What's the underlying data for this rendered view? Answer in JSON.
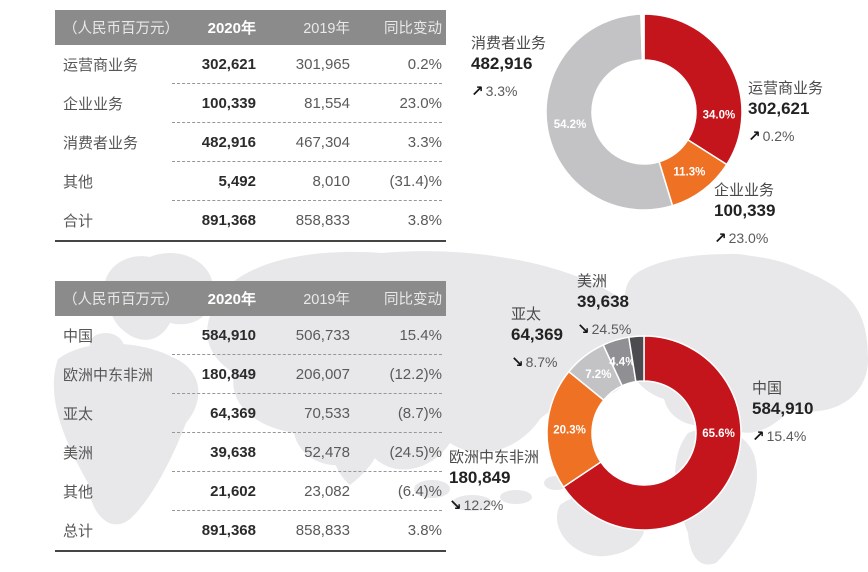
{
  "tables": [
    {
      "header": {
        "unit": "（人民币百万元）",
        "y2020": "2020年",
        "y2019": "2019年",
        "change": "同比变动"
      },
      "rows": [
        {
          "label": "运营商业务",
          "v2020": "302,621",
          "v2019": "301,965",
          "change": "0.2%"
        },
        {
          "label": "企业业务",
          "v2020": "100,339",
          "v2019": "81,554",
          "change": "23.0%"
        },
        {
          "label": "消费者业务",
          "v2020": "482,916",
          "v2019": "467,304",
          "change": "3.3%"
        },
        {
          "label": "其他",
          "v2020": "5,492",
          "v2019": "8,010",
          "change": "(31.4)%"
        },
        {
          "label": "合计",
          "v2020": "891,368",
          "v2019": "858,833",
          "change": "3.8%"
        }
      ]
    },
    {
      "header": {
        "unit": "（人民币百万元）",
        "y2020": "2020年",
        "y2019": "2019年",
        "change": "同比变动"
      },
      "rows": [
        {
          "label": "中国",
          "v2020": "584,910",
          "v2019": "506,733",
          "change": "15.4%"
        },
        {
          "label": "欧洲中东非洲",
          "v2020": "180,849",
          "v2019": "206,007",
          "change": "(12.2)%"
        },
        {
          "label": "亚太",
          "v2020": "64,369",
          "v2019": "70,533",
          "change": "(8.7)%"
        },
        {
          "label": "美洲",
          "v2020": "39,638",
          "v2019": "52,478",
          "change": "(24.5)%"
        },
        {
          "label": "其他",
          "v2020": "21,602",
          "v2019": "23,082",
          "change": "(6.4)%"
        },
        {
          "label": "总计",
          "v2020": "891,368",
          "v2019": "858,833",
          "change": "3.8%"
        }
      ]
    }
  ],
  "chart_data": [
    {
      "type": "pie",
      "donut": true,
      "legend_position": "callouts-around-ring",
      "segments": [
        {
          "label": "运营商业务",
          "value": 302621,
          "value_text": "302,621",
          "share_pct": 34.0,
          "share_label": "34.0%",
          "arrow": "↗",
          "change_text": "0.2%",
          "trend": "up",
          "color": "#c4141c",
          "label_deg": 92
        },
        {
          "label": "企业业务",
          "value": 100339,
          "value_text": "100,339",
          "share_pct": 11.3,
          "share_label": "11.3%",
          "arrow": "↗",
          "change_text": "23.0%",
          "trend": "up",
          "color": "#ee7124"
        },
        {
          "label": "消费者业务",
          "value": 482916,
          "value_text": "482,916",
          "share_pct": 54.2,
          "share_label": "54.2%",
          "arrow": "↗",
          "change_text": "3.3%",
          "trend": "up",
          "color": "#c3c3c6"
        },
        {
          "label": "其他",
          "value": 5492,
          "share_pct": 0.5,
          "color": "#ffffff"
        }
      ]
    },
    {
      "type": "pie",
      "donut": true,
      "legend_position": "callouts-around-ring",
      "segments": [
        {
          "label": "中国",
          "value": 584910,
          "value_text": "584,910",
          "share_pct": 65.6,
          "share_label": "65.6%",
          "arrow": "↗",
          "change_text": "15.4%",
          "trend": "up",
          "color": "#c4141c",
          "label_deg": 90
        },
        {
          "label": "欧洲中东非洲",
          "value": 180849,
          "value_text": "180,849",
          "share_pct": 20.3,
          "share_label": "20.3%",
          "arrow": "↘",
          "change_text": "12.2%",
          "trend": "down",
          "color": "#ee7124"
        },
        {
          "label": "亚太",
          "value": 64369,
          "value_text": "64,369",
          "share_pct": 7.2,
          "share_label": "7.2%",
          "arrow": "↘",
          "change_text": "8.7%",
          "trend": "down",
          "color": "#c3c3c6"
        },
        {
          "label": "美洲",
          "value": 39638,
          "value_text": "39,638",
          "share_pct": 4.4,
          "share_label": "4.4%",
          "arrow": "↘",
          "change_text": "24.5%",
          "trend": "down",
          "color": "#8f8f94"
        },
        {
          "label": "其他",
          "value": 21602,
          "share_pct": 2.5,
          "color": "#4c4c50"
        }
      ]
    }
  ],
  "colors": {
    "brand_red": "#c4141c",
    "orange": "#ee7124",
    "light_gray_slice": "#c3c3c6",
    "mid_gray_slice": "#8f8f94",
    "dark_gray_slice": "#4c4c50",
    "table_header_bg": "#8b8b8b",
    "map_watermark": "#e8e8ea"
  }
}
